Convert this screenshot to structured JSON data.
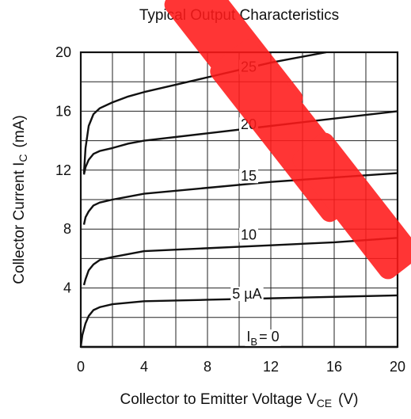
{
  "chart_data": {
    "type": "line",
    "title": "Typical Output Characteristics",
    "xlabel": {
      "main": "Collector to Emitter Voltage  V",
      "sub": "CE",
      "unit": "(V)"
    },
    "ylabel": {
      "main": "Collector Current  I",
      "sub": "C",
      "unit": "(mA)"
    },
    "xlim": [
      0,
      20
    ],
    "ylim": [
      0,
      20
    ],
    "xticks": [
      "0",
      "4",
      "8",
      "12",
      "16",
      "20"
    ],
    "yticks": [
      "4",
      "8",
      "12",
      "16",
      "20"
    ],
    "grid": true,
    "series": [
      {
        "name": "I_B = 0",
        "label_parts": [
          "I",
          "B",
          "= 0"
        ],
        "label_at": [
          11.5,
          0.7
        ],
        "x": [
          0,
          20
        ],
        "y": [
          0,
          0
        ]
      },
      {
        "name": "5 µA",
        "label_parts": [
          "5 µA"
        ],
        "label_at": [
          10.5,
          3.6
        ],
        "x": [
          0,
          0.1,
          0.3,
          0.5,
          0.8,
          1.2,
          2,
          3,
          4,
          8,
          12,
          16,
          20
        ],
        "y": [
          0,
          0.8,
          1.6,
          2.1,
          2.5,
          2.7,
          2.9,
          3.0,
          3.1,
          3.2,
          3.3,
          3.4,
          3.5
        ]
      },
      {
        "name": "10",
        "label_parts": [
          "10"
        ],
        "label_at": [
          10.6,
          7.6
        ],
        "x": [
          0.2,
          0.3,
          0.5,
          0.8,
          1.2,
          2,
          3,
          4,
          8,
          12,
          16,
          20
        ],
        "y": [
          4.2,
          4.6,
          5.2,
          5.6,
          5.9,
          6.1,
          6.3,
          6.5,
          6.7,
          6.9,
          7.1,
          7.4
        ]
      },
      {
        "name": "15",
        "label_parts": [
          "15"
        ],
        "label_at": [
          10.6,
          11.6
        ],
        "x": [
          0.2,
          0.3,
          0.5,
          0.8,
          1.2,
          2,
          3,
          4,
          8,
          12,
          16,
          20
        ],
        "y": [
          8.3,
          8.8,
          9.2,
          9.6,
          9.8,
          10.0,
          10.2,
          10.4,
          10.8,
          11.2,
          11.5,
          11.8
        ]
      },
      {
        "name": "20",
        "label_parts": [
          "20"
        ],
        "label_at": [
          10.6,
          15.1
        ],
        "x": [
          0.2,
          0.3,
          0.5,
          0.8,
          1.2,
          2,
          3,
          4,
          8,
          12,
          16,
          20
        ],
        "y": [
          11.7,
          12.2,
          12.7,
          13.1,
          13.3,
          13.5,
          13.8,
          14.0,
          14.5,
          15.0,
          15.5,
          16.0
        ]
      },
      {
        "name": "25",
        "label_parts": [
          "25"
        ],
        "label_at": [
          10.6,
          19.0
        ],
        "x": [
          0.2,
          0.3,
          0.5,
          0.8,
          1.2,
          2,
          3,
          4,
          6,
          8,
          10,
          12,
          14,
          15.5
        ],
        "y": [
          11.8,
          13.5,
          15.0,
          15.8,
          16.2,
          16.6,
          17.0,
          17.3,
          17.8,
          18.3,
          18.8,
          19.3,
          19.7,
          20.0
        ]
      }
    ]
  }
}
